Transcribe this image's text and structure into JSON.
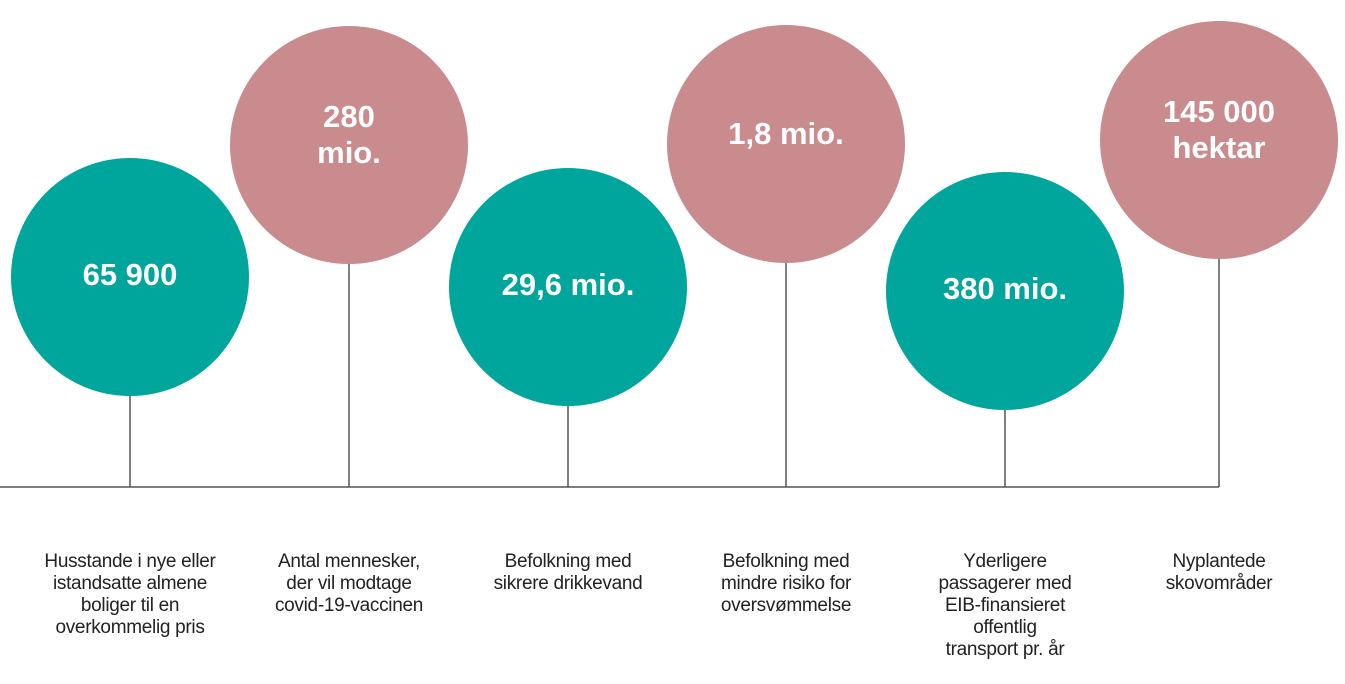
{
  "items": [
    {
      "value": [
        "65 900"
      ],
      "description": [
        "Husstande i nye eller",
        "istandsatte almene",
        "boliger til en",
        "overkommelig pris"
      ]
    },
    {
      "value": [
        "280",
        "mio."
      ],
      "description": [
        "Antal mennesker,",
        "der vil modtage",
        "covid-19-vaccinen"
      ]
    },
    {
      "value": [
        "29,6 mio."
      ],
      "description": [
        "Befolkning med",
        "sikrere drikkevand"
      ]
    },
    {
      "value": [
        "1,8 mio."
      ],
      "description": [
        "Befolkning med",
        "mindre risiko for",
        "oversvømmelse"
      ]
    },
    {
      "value": [
        "380 mio."
      ],
      "description": [
        "Yderligere",
        "passagerer med",
        "EIB-finansieret",
        "offentlig",
        "transport pr. år"
      ]
    },
    {
      "value": [
        "145 000",
        "hektar"
      ],
      "description": [
        "Nyplantede",
        "skovområder"
      ]
    }
  ]
}
